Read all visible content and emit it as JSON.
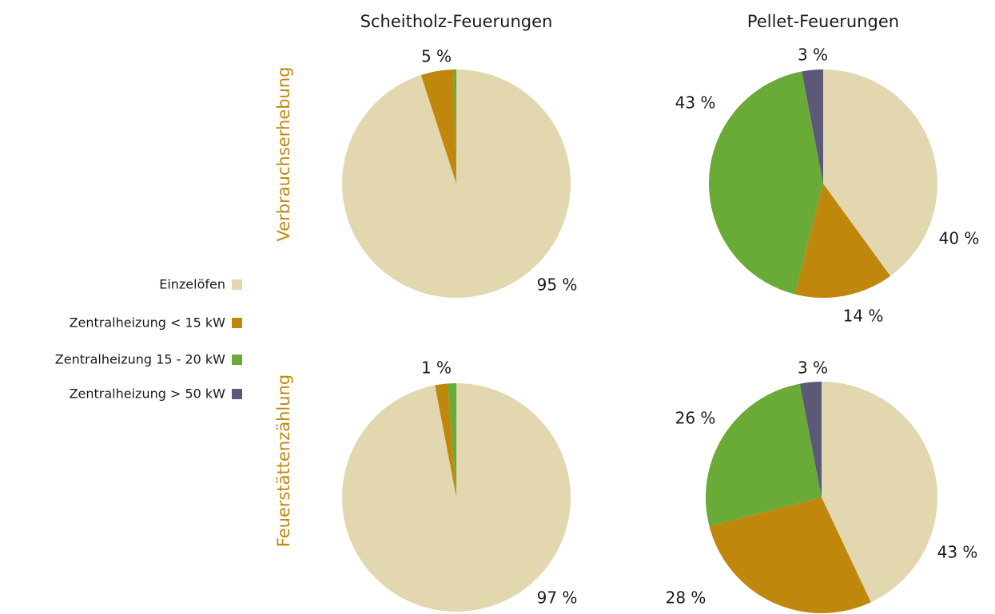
{
  "column_titles": [
    "Scheitholz-Feuerungen",
    "Pellet-Feuerungen"
  ],
  "row_titles": [
    "Verbrauchserhebung",
    "Feuerstättenzählung"
  ],
  "legend": {
    "categories": [
      "Einzelöfen",
      "Zentralheizung < 15 kW",
      "Zentralheizung 15 - 20 kW",
      "Zentralheizung > 50 kW"
    ],
    "colors": [
      "#e3d7b0",
      "#bf870c",
      "#6aaa37",
      "#5c5877"
    ]
  },
  "chart_data": [
    {
      "type": "pie",
      "values": [
        95,
        4.6,
        0.4,
        0
      ],
      "value_labels": [
        "95 %",
        "5 %",
        null,
        null
      ]
    },
    {
      "type": "pie",
      "values": [
        40,
        14,
        43,
        3
      ],
      "value_labels": [
        "40 %",
        "14 %",
        "43 %",
        "3 %"
      ]
    },
    {
      "type": "pie",
      "values": [
        97,
        1.8,
        1.2,
        0
      ],
      "value_labels": [
        "97 %",
        null,
        "1 %",
        null
      ]
    },
    {
      "type": "pie",
      "values": [
        43,
        28,
        26,
        3
      ],
      "value_labels": [
        "43 %",
        "28 %",
        "26 %",
        "3 %"
      ]
    }
  ]
}
